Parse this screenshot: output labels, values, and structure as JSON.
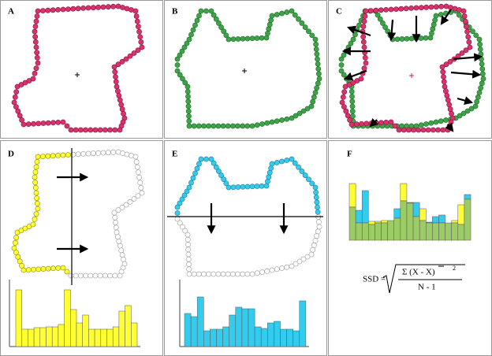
{
  "panels": [
    {
      "label": "A"
    },
    {
      "label": "B"
    },
    {
      "label": "C"
    },
    {
      "label": "D"
    },
    {
      "label": "E"
    },
    {
      "label": "F"
    }
  ],
  "histograms": {
    "D": {
      "values": [
        72,
        22,
        22,
        24,
        24,
        25,
        25,
        28,
        72,
        47,
        30,
        40,
        22,
        22,
        22,
        22,
        25,
        45,
        52,
        30
      ],
      "color": "#ffff33"
    },
    "E": {
      "values": [
        42,
        38,
        63,
        20,
        22,
        22,
        25,
        40,
        50,
        48,
        48,
        25,
        23,
        30,
        32,
        22,
        22,
        20,
        58
      ],
      "color": "#33ccee"
    }
  },
  "formula": {
    "lhs": "SSD =",
    "numerator": "Σ (X - X)",
    "exponent": "2",
    "denominator": "N - 1"
  }
}
